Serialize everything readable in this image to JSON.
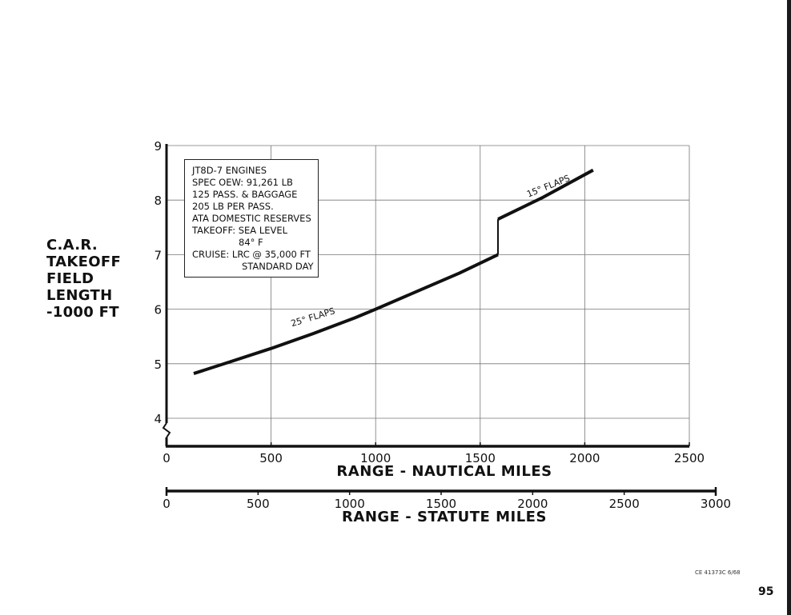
{
  "y_label_lines": [
    "C.A.R.",
    "TAKEOFF",
    "FIELD",
    "LENGTH",
    "-1000 FT"
  ],
  "info_box": {
    "lines": [
      "JT8D-7 ENGINES",
      "SPEC OEW: 91,261 LB",
      "125 PASS. & BAGGAGE",
      "205 LB PER PASS.",
      "ATA DOMESTIC RESERVES",
      "TAKEOFF: SEA LEVEL",
      "84° F",
      "CRUISE: LRC @ 35,000 FT",
      "STANDARD DAY"
    ]
  },
  "footer": {
    "code": "CE 41373C  6/68",
    "page_number": "95"
  },
  "chart_data": {
    "type": "line",
    "xlabel": "RANGE - NAUTICAL MILES",
    "ylabel": "C.A.R. TAKEOFF FIELD LENGTH -1000 FT",
    "xlim": [
      0,
      2500
    ],
    "ylim": [
      4,
      9
    ],
    "x_ticks": [
      0,
      500,
      1000,
      1500,
      2000,
      2500
    ],
    "y_ticks": [
      4,
      5,
      6,
      7,
      8,
      9
    ],
    "y_axis_break": true,
    "grid": true,
    "secondary_x_axis": {
      "label": "RANGE - STATUTE MILES",
      "ticks": [
        0,
        500,
        1000,
        1500,
        2000,
        2500,
        3000
      ],
      "range": [
        0,
        3000
      ]
    },
    "series": [
      {
        "name": "25° FLAPS",
        "x": [
          130,
          300,
          500,
          700,
          900,
          1000,
          1200,
          1400,
          1585
        ],
        "y": [
          4.82,
          5.03,
          5.28,
          5.55,
          5.84,
          6.0,
          6.33,
          6.66,
          7.0
        ]
      },
      {
        "name": "15° FLAPS",
        "x": [
          1585,
          1800,
          2040
        ],
        "y": [
          7.65,
          8.05,
          8.55
        ]
      }
    ],
    "connector": {
      "x": 1585,
      "y": [
        7.0,
        7.65
      ]
    }
  }
}
